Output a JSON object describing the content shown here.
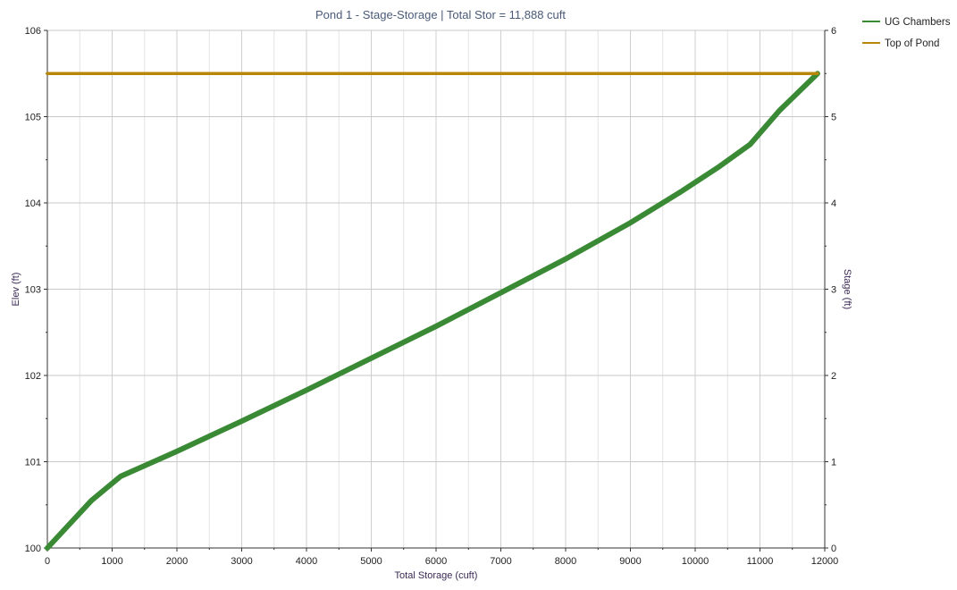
{
  "chart_data": {
    "type": "line",
    "title": "Pond 1 - Stage-Storage | Total Stor = 11,888 cuft",
    "xlabel": "Total Storage (cuft)",
    "ylabel": "Elev (ft)",
    "y2label": "Stage (ft)",
    "xlim": [
      0,
      12000
    ],
    "ylim": [
      100,
      106
    ],
    "y2lim": [
      0,
      6
    ],
    "xticks": [
      "0",
      "1000",
      "2000",
      "3000",
      "4000",
      "5000",
      "6000",
      "7000",
      "8000",
      "9000",
      "10000",
      "11000",
      "12000"
    ],
    "yticks": [
      "100",
      "101",
      "102",
      "103",
      "104",
      "105",
      "106"
    ],
    "y2ticks": [
      "0",
      "1",
      "2",
      "3",
      "4",
      "5",
      "6"
    ],
    "grid": true,
    "legend_position": "top-right",
    "series": [
      {
        "name": "UG Chambers",
        "color": "#3a8a35",
        "x": [
          0,
          680,
          1130,
          2000,
          3000,
          4000,
          5000,
          6000,
          7000,
          8000,
          9000,
          9800,
          10350,
          10850,
          11300,
          11888
        ],
        "y": [
          100.0,
          100.55,
          100.83,
          101.12,
          101.47,
          101.83,
          102.2,
          102.57,
          102.96,
          103.35,
          103.77,
          104.14,
          104.41,
          104.68,
          105.07,
          105.5
        ]
      },
      {
        "name": "Top of Pond",
        "color": "#b8860b",
        "x": [
          0,
          11888
        ],
        "y": [
          105.5,
          105.5
        ]
      }
    ]
  }
}
